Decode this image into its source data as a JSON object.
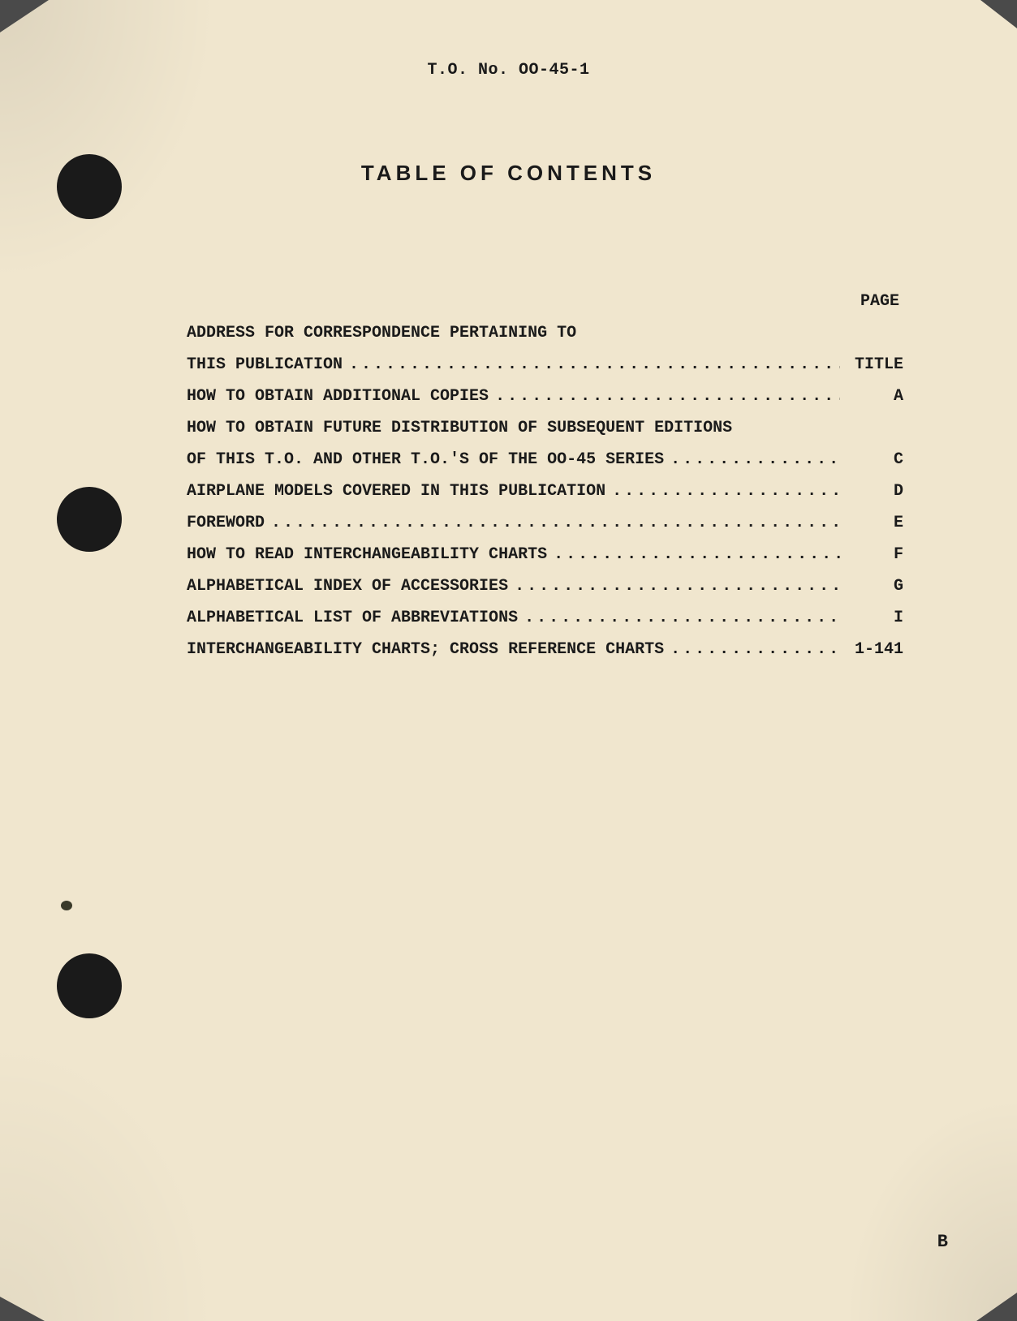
{
  "document": {
    "header": "T.O. No. OO-45-1",
    "title": "TABLE OF CONTENTS",
    "column_header": "PAGE",
    "page_marker": "B",
    "background_color": "#f0e6ce",
    "text_color": "#1a1a1a",
    "hole_color": "#1a1a1a",
    "font_family_body": "Courier New",
    "font_family_title": "Arial",
    "title_fontsize": 26,
    "body_fontsize": 20
  },
  "toc": {
    "entries": [
      {
        "text": "ADDRESS FOR CORRESPONDENCE PERTAINING TO",
        "page": "",
        "has_dots": false
      },
      {
        "text": "THIS PUBLICATION",
        "page": "TITLE",
        "has_dots": true
      },
      {
        "text": "HOW TO OBTAIN ADDITIONAL COPIES",
        "page": "A",
        "has_dots": true
      },
      {
        "text": "HOW TO OBTAIN FUTURE DISTRIBUTION OF SUBSEQUENT EDITIONS",
        "page": "",
        "has_dots": false
      },
      {
        "text": "OF THIS T.O. AND OTHER T.O.'S OF THE OO-45 SERIES",
        "page": "C",
        "has_dots": true
      },
      {
        "text": "AIRPLANE MODELS COVERED IN THIS PUBLICATION",
        "page": "D",
        "has_dots": true
      },
      {
        "text": "FOREWORD",
        "page": "E",
        "has_dots": true
      },
      {
        "text": "HOW TO READ INTERCHANGEABILITY CHARTS",
        "page": "F",
        "has_dots": true
      },
      {
        "text": "ALPHABETICAL INDEX OF ACCESSORIES",
        "page": "G",
        "has_dots": true
      },
      {
        "text": "ALPHABETICAL LIST OF ABBREVIATIONS",
        "page": "I",
        "has_dots": true
      },
      {
        "text": "INTERCHANGEABILITY CHARTS; CROSS REFERENCE CHARTS",
        "page": "1-141",
        "has_dots": true
      }
    ]
  }
}
